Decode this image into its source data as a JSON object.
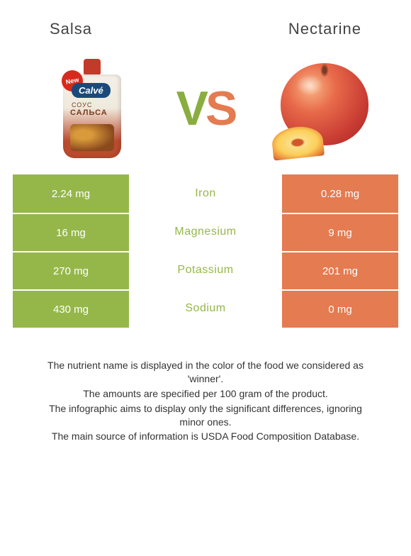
{
  "header": {
    "left_title": "Salsa",
    "right_title": "Nectarine"
  },
  "vs": {
    "v": "V",
    "s": "S"
  },
  "left_image": {
    "new_badge": "New",
    "brand": "Calvé",
    "line1": "СОУС",
    "line2": "САЛЬСА"
  },
  "colors": {
    "left_col": "#95b74a",
    "right_col": "#e47b51",
    "mid_text": "#95b74a"
  },
  "table": {
    "rows": [
      {
        "left": "2.24 mg",
        "mid": "Iron",
        "right": "0.28 mg"
      },
      {
        "left": "16 mg",
        "mid": "Magnesium",
        "right": "9 mg"
      },
      {
        "left": "270 mg",
        "mid": "Potassium",
        "right": "201 mg"
      },
      {
        "left": "430 mg",
        "mid": "Sodium",
        "right": "0 mg"
      }
    ],
    "font_size_values": 15,
    "font_size_label": 16
  },
  "footnotes": [
    "The nutrient name is displayed in the color of the food we considered as 'winner'.",
    "The amounts are specified per 100 gram of the product.",
    "The infographic aims to display only the significant differences, ignoring minor ones.",
    "The main source of information is USDA Food Composition Database."
  ]
}
